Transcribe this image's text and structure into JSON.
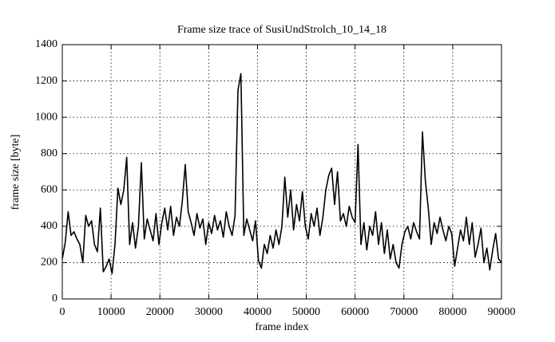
{
  "chart_data": {
    "type": "line",
    "title": "Frame size trace of SusiUndStrolch_10_14_18",
    "xlabel": "frame index",
    "ylabel": "frame size [byte]",
    "color": "#000000",
    "grid": true,
    "xlim": [
      0,
      90000
    ],
    "ylim": [
      0,
      1400
    ],
    "xticks": [
      0,
      10000,
      20000,
      30000,
      40000,
      50000,
      60000,
      70000,
      80000,
      90000
    ],
    "yticks": [
      0,
      200,
      400,
      600,
      800,
      1000,
      1200,
      1400
    ],
    "x": [
      0,
      600,
      1200,
      1800,
      2400,
      3000,
      3600,
      4200,
      4800,
      5400,
      6000,
      6600,
      7200,
      7800,
      8400,
      9000,
      9600,
      10200,
      10800,
      11400,
      12000,
      12600,
      13200,
      13800,
      14400,
      15000,
      15600,
      16200,
      16800,
      17400,
      18000,
      18600,
      19200,
      19800,
      20400,
      21000,
      21600,
      22200,
      22800,
      23400,
      24000,
      24600,
      25200,
      25800,
      26400,
      27000,
      27600,
      28200,
      28800,
      29400,
      30000,
      30600,
      31200,
      31800,
      32400,
      33000,
      33600,
      34200,
      34800,
      35400,
      36000,
      36600,
      37200,
      37800,
      38400,
      39000,
      39600,
      40200,
      40800,
      41400,
      42000,
      42600,
      43200,
      43800,
      44400,
      45000,
      45600,
      46200,
      46800,
      47400,
      48000,
      48600,
      49200,
      49800,
      50400,
      51000,
      51600,
      52200,
      52800,
      53400,
      54000,
      54600,
      55200,
      55800,
      56400,
      57000,
      57600,
      58200,
      58800,
      59400,
      60000,
      60600,
      61200,
      61800,
      62400,
      63000,
      63600,
      64200,
      64800,
      65400,
      66000,
      66600,
      67200,
      67800,
      68400,
      69000,
      69600,
      70200,
      70800,
      71400,
      72000,
      72600,
      73200,
      73800,
      74400,
      75000,
      75600,
      76200,
      76800,
      77400,
      78000,
      78600,
      79200,
      79800,
      80400,
      81000,
      81600,
      82200,
      82800,
      83400,
      84000,
      84600,
      85200,
      85800,
      86400,
      87000,
      87600,
      88200,
      88800,
      89400,
      90000
    ],
    "values": [
      220,
      310,
      480,
      350,
      370,
      330,
      300,
      200,
      460,
      400,
      430,
      300,
      260,
      500,
      150,
      180,
      220,
      140,
      300,
      610,
      520,
      600,
      780,
      300,
      420,
      280,
      400,
      750,
      330,
      440,
      380,
      320,
      470,
      300,
      420,
      500,
      380,
      510,
      350,
      450,
      400,
      540,
      740,
      480,
      420,
      350,
      470,
      390,
      440,
      300,
      420,
      360,
      460,
      380,
      430,
      340,
      480,
      400,
      350,
      460,
      1150,
      1240,
      350,
      440,
      380,
      320,
      430,
      210,
      170,
      300,
      250,
      350,
      280,
      380,
      300,
      400,
      670,
      450,
      600,
      380,
      520,
      430,
      590,
      400,
      330,
      470,
      400,
      500,
      350,
      450,
      600,
      680,
      720,
      520,
      700,
      430,
      470,
      400,
      510,
      450,
      420,
      850,
      300,
      420,
      270,
      400,
      350,
      480,
      300,
      420,
      250,
      380,
      220,
      300,
      200,
      170,
      300,
      370,
      400,
      330,
      420,
      370,
      330,
      920,
      650,
      500,
      300,
      420,
      360,
      450,
      380,
      320,
      400,
      360,
      180,
      280,
      380,
      320,
      450,
      300,
      420,
      230,
      300,
      390,
      200,
      280,
      160,
      270,
      360,
      220,
      200
    ]
  }
}
